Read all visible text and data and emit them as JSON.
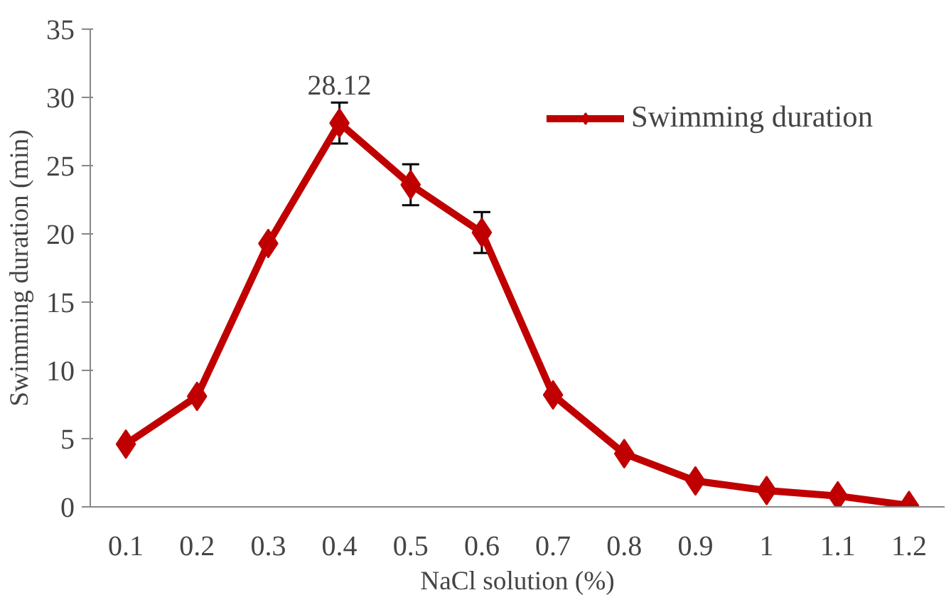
{
  "chart_data": {
    "type": "line",
    "xlabel": "NaCl solution (%)",
    "ylabel": "Swimming duration (min)",
    "categories": [
      "0.1",
      "0.2",
      "0.3",
      "0.4",
      "0.5",
      "0.6",
      "0.7",
      "0.8",
      "0.9",
      "1",
      "1.1",
      "1.2"
    ],
    "series": [
      {
        "name": "Swimming duration",
        "color": "#c00000",
        "values": [
          4.6,
          8.1,
          19.3,
          28.12,
          23.6,
          20.1,
          8.2,
          3.9,
          1.9,
          1.2,
          0.8,
          0.1
        ],
        "errors": [
          null,
          null,
          null,
          1.5,
          1.5,
          1.5,
          null,
          null,
          null,
          null,
          null,
          null
        ]
      }
    ],
    "annotations": [
      {
        "text": "28.12",
        "x": "0.4",
        "y": 28.12
      }
    ],
    "ylim": [
      0,
      35
    ],
    "yticks": [
      0,
      5,
      10,
      15,
      20,
      25,
      30,
      35
    ],
    "grid": false,
    "legend": "top right",
    "marker": "diamond",
    "line_style": "solid"
  }
}
